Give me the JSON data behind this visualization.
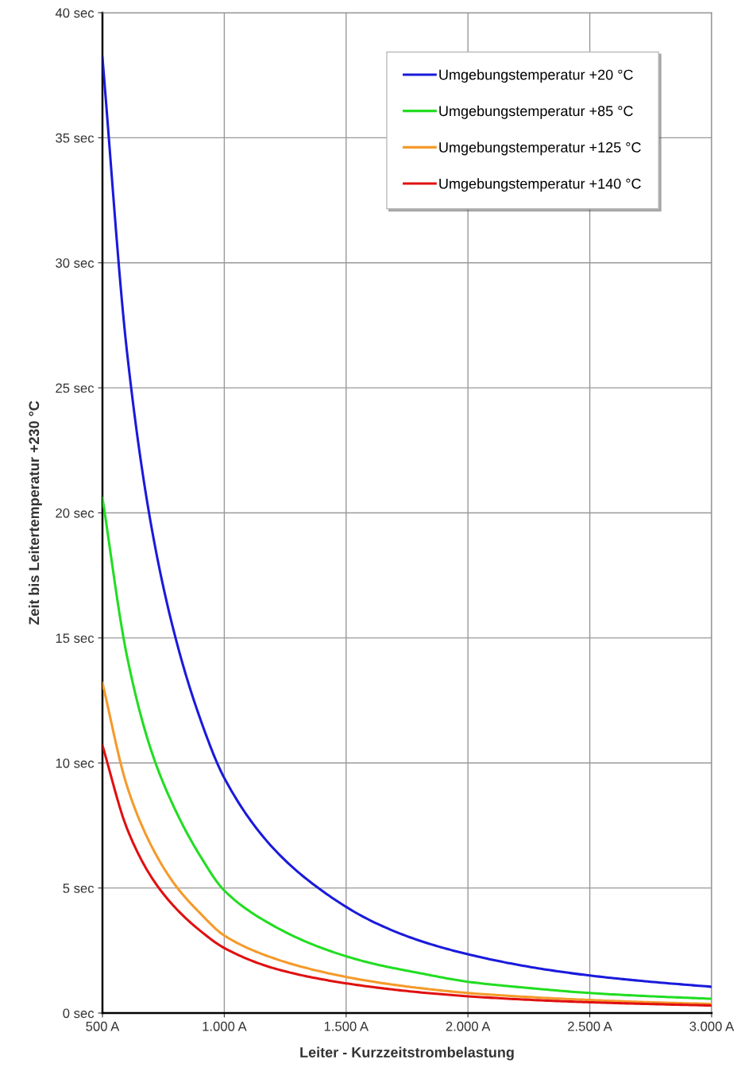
{
  "chart_data": {
    "type": "line",
    "xlabel": "Leiter - Kurzzeitstrombelastung",
    "ylabel": "Zeit bis Leitertemperatur +230 °C",
    "x": [
      500,
      600,
      700,
      800,
      900,
      1000,
      1200,
      1400,
      1600,
      1800,
      2000,
      2250,
      2500,
      2750,
      3000
    ],
    "series": [
      {
        "name": "Umgebungstemperatur +20 °C",
        "color": "#1a1adc",
        "values": [
          38.2,
          26.5,
          19.5,
          15,
          11.8,
          9.4,
          6.6,
          4.9,
          3.7,
          2.9,
          2.35,
          1.85,
          1.5,
          1.25,
          1.05
        ]
      },
      {
        "name": "Umgebungstemperatur +85 °C",
        "color": "#22dd22",
        "values": [
          20.6,
          14.3,
          10.5,
          8.1,
          6.3,
          4.9,
          3.5,
          2.6,
          2.0,
          1.6,
          1.25,
          1.0,
          0.8,
          0.67,
          0.57
        ]
      },
      {
        "name": "Umgebungstemperatur +125 °C",
        "color": "#f59a2a",
        "values": [
          13.2,
          9.1,
          6.7,
          5.1,
          4.0,
          3.1,
          2.2,
          1.65,
          1.27,
          1.0,
          0.8,
          0.64,
          0.52,
          0.43,
          0.36
        ]
      },
      {
        "name": "Umgebungstemperatur +140 °C",
        "color": "#e01010",
        "values": [
          10.7,
          7.4,
          5.45,
          4.2,
          3.3,
          2.6,
          1.8,
          1.35,
          1.05,
          0.83,
          0.67,
          0.53,
          0.43,
          0.36,
          0.3
        ]
      }
    ],
    "xlim": [
      500,
      3000
    ],
    "xticks": [
      {
        "value": 500,
        "label": "500 A"
      },
      {
        "value": 1000,
        "label": "1.000 A"
      },
      {
        "value": 1500,
        "label": "1.500 A"
      },
      {
        "value": 2000,
        "label": "2.000 A"
      },
      {
        "value": 2500,
        "label": "2.500 A"
      },
      {
        "value": 3000,
        "label": "3.000 A"
      }
    ],
    "ylim": [
      0,
      40
    ],
    "yticks": [
      {
        "value": 0,
        "label": "0 sec"
      },
      {
        "value": 5,
        "label": "5 sec"
      },
      {
        "value": 10,
        "label": "10 sec"
      },
      {
        "value": 15,
        "label": "15 sec"
      },
      {
        "value": 20,
        "label": "20 sec"
      },
      {
        "value": 25,
        "label": "25 sec"
      },
      {
        "value": 30,
        "label": "30 sec"
      },
      {
        "value": 35,
        "label": "35 sec"
      },
      {
        "value": 40,
        "label": "40 sec"
      }
    ],
    "grid": true,
    "legend": "top right"
  }
}
